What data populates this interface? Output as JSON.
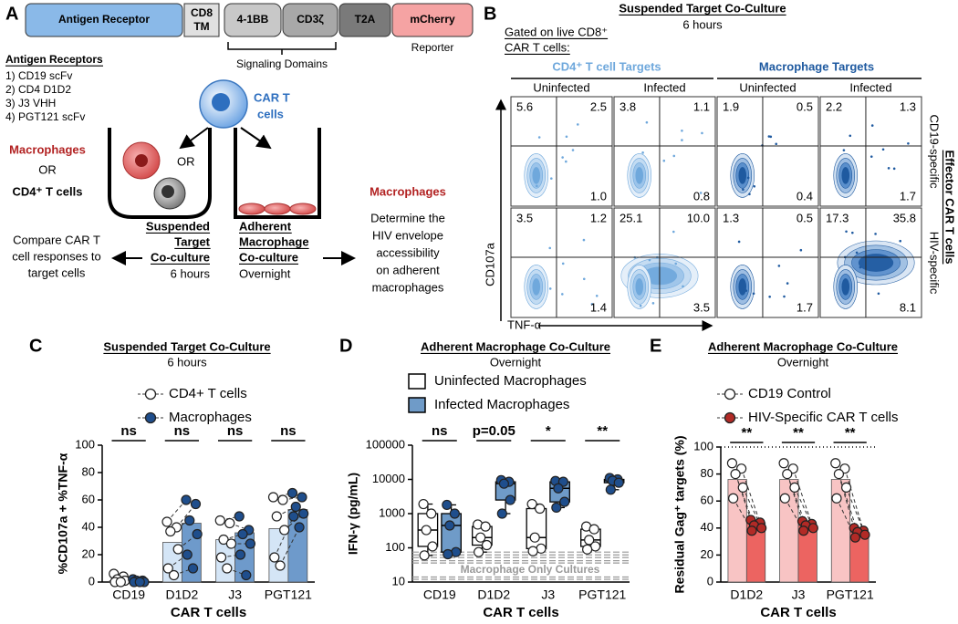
{
  "panel_a": {
    "label": "A",
    "construct": {
      "antigen_receptor": "Antigen Receptor",
      "cd8_tm": [
        "CD8",
        "TM"
      ],
      "bb": "4-1BB",
      "cd3z": "CD3ζ",
      "t2a": "T2A",
      "mcherry": "mCherry",
      "reporter": "Reporter",
      "signaling": "Signaling Domains"
    },
    "receptors": {
      "title": "Antigen Receptors",
      "items": [
        "1) CD19 scFv",
        "2) CD4 D1D2",
        "3) J3 VHH",
        "4) PGT121 scFv"
      ]
    },
    "car_t": [
      "CAR T",
      "cells"
    ],
    "targets": {
      "macrophages": "Macrophages",
      "or": "OR",
      "cd4": "CD4⁺ T cells",
      "well_or": "OR"
    },
    "suspended": {
      "title": [
        "Suspended",
        "Target",
        "Co-culture"
      ],
      "time": "6 hours",
      "outcome": [
        "Compare CAR T",
        "cell responses to",
        "target cells"
      ]
    },
    "adherent": {
      "title": [
        "Adherent",
        "Macrophage",
        "Co-culture"
      ],
      "time": "Overnight",
      "target": "Macrophages",
      "outcome": [
        "Determine the",
        "HIV envelope",
        "accessibility",
        "on adherent",
        "macrophages"
      ]
    }
  },
  "panel_b": {
    "label": "B",
    "title": "Suspended Target Co-Culture",
    "subtitle": "6 hours",
    "gate": [
      "Gated on live CD8⁺",
      "CAR T cells:"
    ],
    "groups": [
      "CD4⁺ T cell Targets",
      "Macrophage Targets"
    ],
    "columns": [
      "Uninfected",
      "Infected",
      "Uninfected",
      "Infected"
    ],
    "rows": [
      "CD19-specific",
      "HIV-specific"
    ],
    "row_title": "Effector CAR T cells",
    "y_axis": "CD107a",
    "x_axis": "TNF-α",
    "quadrants": [
      [
        [
          "5.6",
          "2.5",
          "1.0"
        ],
        [
          "3.8",
          "1.1",
          "0.8"
        ],
        [
          "1.9",
          "0.5",
          "0.4"
        ],
        [
          "2.2",
          "1.3",
          "1.7"
        ]
      ],
      [
        [
          "3.5",
          "1.2",
          "1.4"
        ],
        [
          "25.1",
          "10.0",
          "3.5"
        ],
        [
          "1.3",
          "0.5",
          "1.7"
        ],
        [
          "17.3",
          "35.8",
          "8.1"
        ]
      ]
    ]
  },
  "chart_data": [
    {
      "type": "bar",
      "panel": "C",
      "title": "Suspended Target Co-Culture",
      "subtitle": "6 hours",
      "categories": [
        "CD19",
        "D1D2",
        "J3",
        "PGT121"
      ],
      "series": [
        {
          "name": "CD4+ T cells",
          "color": "#d4e5f6",
          "point_color": "#ffffff",
          "values": [
            1,
            29,
            31,
            39
          ],
          "points": [
            [
              6,
              4,
              2,
              1,
              0,
              0
            ],
            [
              44,
              40,
              37,
              24,
              10,
              5
            ],
            [
              45,
              43,
              31,
              28,
              18,
              10
            ],
            [
              62,
              60,
              48,
              38,
              18,
              12
            ]
          ]
        },
        {
          "name": "Macrophages",
          "color": "#6e9acb",
          "point_color": "#1f4e8c",
          "values": [
            1,
            43,
            36,
            53
          ],
          "points": [
            [
              2,
              1,
              1,
              0,
              0,
              0
            ],
            [
              60,
              57,
              45,
              35,
              20,
              10
            ],
            [
              48,
              38,
              35,
              28,
              20,
              5
            ],
            [
              65,
              62,
              55,
              50,
              48,
              40
            ]
          ]
        }
      ],
      "pair_lines": true,
      "annotations": [
        "ns",
        "ns",
        "ns",
        "ns"
      ],
      "ylim": [
        0,
        100
      ],
      "yticks": [
        0,
        20,
        40,
        60,
        80,
        100
      ],
      "ylabel": "%CD107a + %TNF-α",
      "xlabel": "CAR T cells"
    },
    {
      "type": "box",
      "panel": "D",
      "title": "Adherent Macrophage Co-Culture",
      "subtitle": "Overnight",
      "categories": [
        "CD19",
        "D1D2",
        "J3",
        "PGT121"
      ],
      "series": [
        {
          "name": "Uninfected Macrophages",
          "color": "#ffffff",
          "point_color": "#ffffff",
          "values": [
            [
              60,
              110,
              330,
              1000,
              1900
            ],
            [
              75,
              120,
              200,
              420,
              480
            ],
            [
              80,
              95,
              200,
              1400,
              1900
            ],
            [
              90,
              110,
              170,
              350,
              420
            ]
          ],
          "points": [
            [
              1900,
              1000,
              330,
              110,
              60
            ],
            [
              480,
              420,
              200,
              120,
              75
            ],
            [
              1900,
              1400,
              200,
              95,
              80
            ],
            [
              420,
              350,
              170,
              110,
              90
            ]
          ]
        },
        {
          "name": "Infected Macrophages",
          "color": "#6f9bc8",
          "point_color": "#1f4e8c",
          "values": [
            [
              65,
              75,
              450,
              1000,
              1800
            ],
            [
              1000,
              2500,
              7500,
              8500,
              9500
            ],
            [
              1500,
              2200,
              5500,
              8500,
              9000
            ],
            [
              5000,
              8000,
              9200,
              10000,
              11000
            ]
          ],
          "points": [
            [
              1800,
              1000,
              450,
              75,
              65
            ],
            [
              9500,
              8500,
              7500,
              2500,
              1000
            ],
            [
              9000,
              8500,
              5500,
              2200,
              1500
            ],
            [
              11000,
              10000,
              9200,
              8000,
              5000
            ]
          ]
        }
      ],
      "pair_lines": false,
      "annotations": [
        "ns",
        "p=0.05",
        "*",
        "**"
      ],
      "log": true,
      "ylim": [
        10,
        100000
      ],
      "yticks": [
        10,
        100,
        1000,
        10000,
        100000
      ],
      "hlines": [
        75,
        62,
        52,
        42,
        36,
        14,
        12
      ],
      "hline_style": "dashed",
      "hline_label": "Macrophage Only Cultures",
      "ylabel": "IFN-γ (pg/mL)",
      "xlabel": "CAR T cells"
    },
    {
      "type": "bar",
      "panel": "E",
      "title": "Adherent Macrophage Co-Culture",
      "subtitle": "Overnight",
      "categories": [
        "D1D2",
        "J3",
        "PGT121"
      ],
      "series": [
        {
          "name": "CD19 Control",
          "color": "#f8c4c4",
          "point_color": "#ffffff",
          "values": [
            76,
            76,
            76
          ],
          "points": [
            [
              88,
              84,
              80,
              70,
              62
            ],
            [
              88,
              84,
              80,
              70,
              62
            ],
            [
              88,
              84,
              80,
              70,
              62
            ]
          ]
        },
        {
          "name": "HIV-Specific CAR T cells",
          "color": "#ec6461",
          "point_color": "#b22a26",
          "values": [
            44,
            42,
            37
          ],
          "points": [
            [
              46,
              44,
              42,
              40,
              38
            ],
            [
              45,
              43,
              42,
              40,
              38
            ],
            [
              40,
              38,
              37,
              35,
              33
            ]
          ]
        }
      ],
      "pair_lines": true,
      "annotations": [
        "**",
        "**",
        "**"
      ],
      "ylim": [
        0,
        100
      ],
      "yticks": [
        0,
        20,
        40,
        60,
        80,
        100
      ],
      "hlines": [
        100
      ],
      "hline_style": "dotted",
      "ylabel": "Residual Gag⁺ targets (%)",
      "xlabel": "CAR T cells"
    }
  ]
}
